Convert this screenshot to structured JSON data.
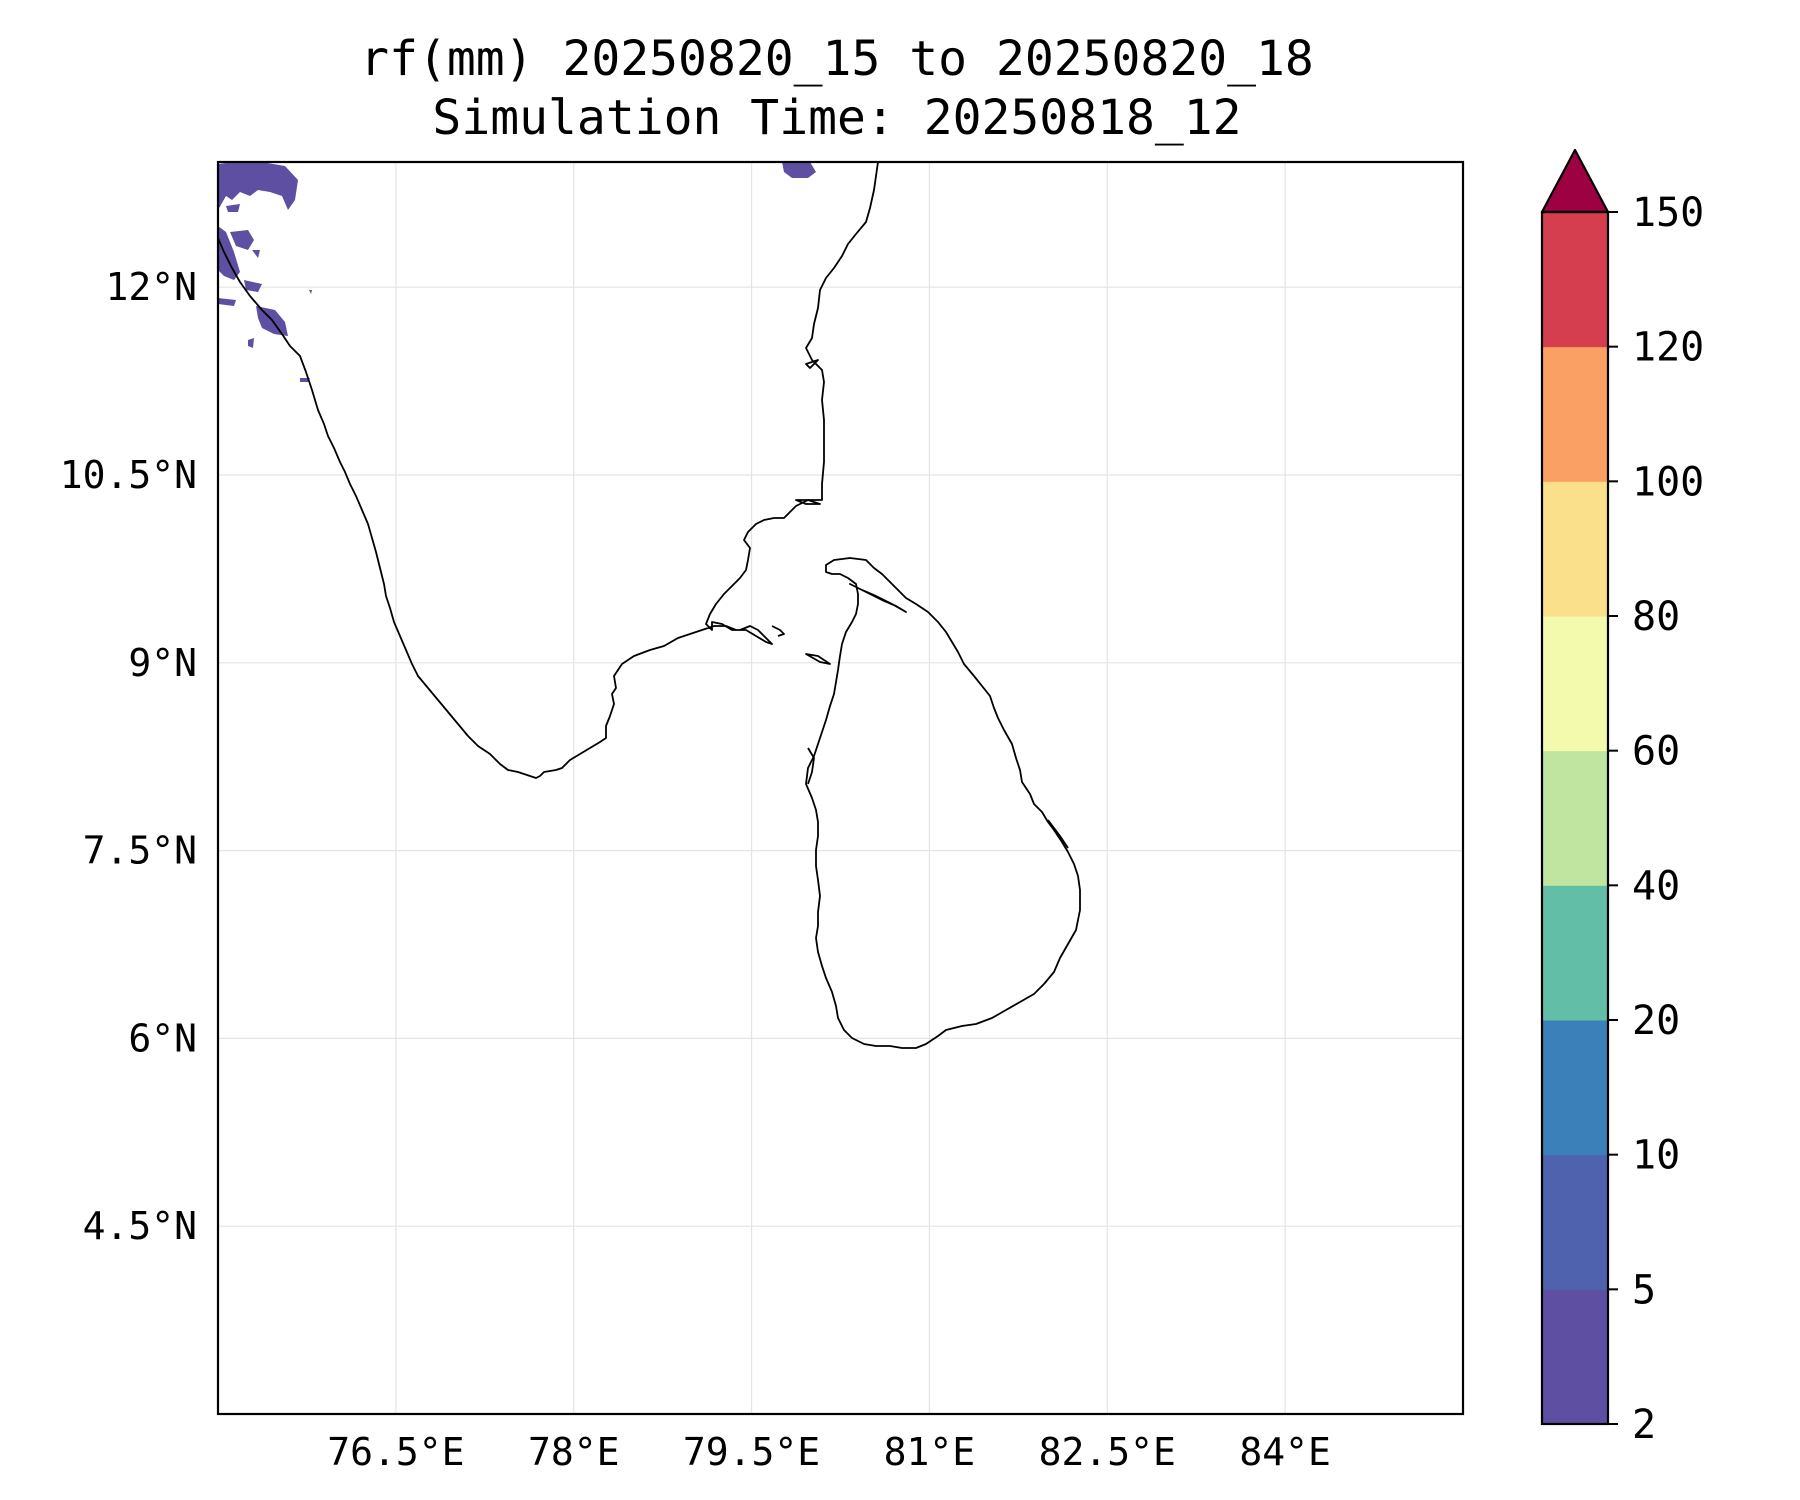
{
  "title": {
    "line1": "rf(mm) 20250820_15 to 20250820_18",
    "line2": "Simulation Time: 20250818_12"
  },
  "map": {
    "lon_range": [
      75.0,
      85.5
    ],
    "lat_range": [
      3.0,
      13.0
    ],
    "lon_ticks": [
      {
        "value": 76.5,
        "label": "76.5°E"
      },
      {
        "value": 78.0,
        "label": "78°E"
      },
      {
        "value": 79.5,
        "label": "79.5°E"
      },
      {
        "value": 81.0,
        "label": "81°E"
      },
      {
        "value": 82.5,
        "label": "82.5°E"
      },
      {
        "value": 84.0,
        "label": "84°E"
      }
    ],
    "lat_ticks": [
      {
        "value": 12.0,
        "label": "12°N"
      },
      {
        "value": 10.5,
        "label": "10.5°N"
      },
      {
        "value": 9.0,
        "label": "9°N"
      },
      {
        "value": 7.5,
        "label": "7.5°N"
      },
      {
        "value": 6.0,
        "label": "6°N"
      },
      {
        "value": 4.5,
        "label": "4.5°N"
      }
    ],
    "gridlines": true,
    "rain_fill_color": "#5e4fa2"
  },
  "colorbar": {
    "levels": [
      "2",
      "5",
      "10",
      "20",
      "40",
      "60",
      "80",
      "100",
      "120",
      "150"
    ],
    "colors": [
      "#5e4fa2",
      "#4e62ad",
      "#3b80b9",
      "#62bea6",
      "#bfe5a0",
      "#f3faad",
      "#fbe08b",
      "#fba064",
      "#d53e4f"
    ],
    "extend_color": "#9e0142",
    "extend": "max"
  }
}
